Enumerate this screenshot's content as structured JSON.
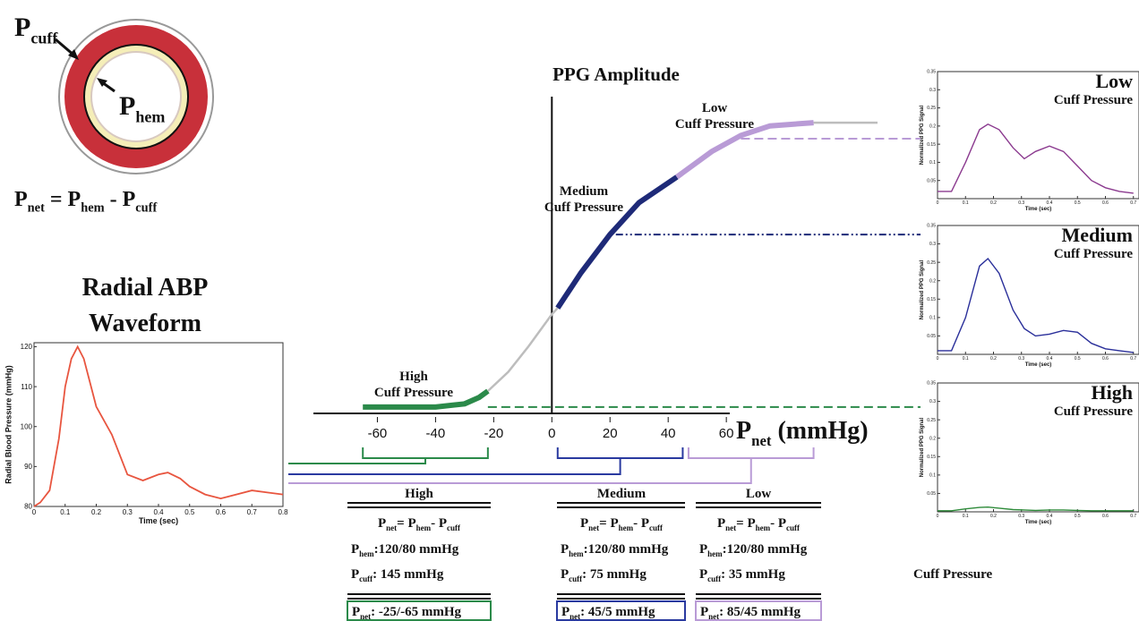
{
  "chart_data": [
    {
      "type": "line",
      "title": [
        "Radial ABP",
        "Waveform"
      ],
      "x_label": "Time (sec)",
      "y_label": "Radial Blood Pressure (mmHg)",
      "x": [
        0,
        0.02,
        0.05,
        0.08,
        0.1,
        0.12,
        0.14,
        0.16,
        0.2,
        0.25,
        0.3,
        0.35,
        0.4,
        0.43,
        0.47,
        0.5,
        0.55,
        0.6,
        0.65,
        0.7,
        0.75,
        0.8
      ],
      "values": [
        80,
        81,
        84,
        97,
        110,
        117,
        120,
        117,
        105,
        98,
        88,
        86.5,
        88,
        88.5,
        87,
        85,
        83,
        82,
        83,
        84,
        83.5,
        83
      ],
      "color": "#e8553f",
      "xlim": [
        0,
        0.8
      ],
      "ylim": [
        80,
        121
      ],
      "xticks": [
        0,
        0.1,
        0.2,
        0.3,
        0.4,
        0.5,
        0.6,
        0.7,
        0.8
      ],
      "yticks": [
        80,
        90,
        100,
        110,
        120
      ]
    },
    {
      "type": "line",
      "title": "PPG Amplitude",
      "x_label": [
        {
          "base": "P",
          "sub": "net"
        },
        " (mmHg)"
      ],
      "xlim": [
        -82,
        120
      ],
      "ylim": [
        0,
        1
      ],
      "xticks": [
        -60,
        -40,
        -20,
        0,
        20,
        40,
        60
      ],
      "annotations": [
        [
          "High",
          "Cuff Pressure"
        ],
        [
          "Medium",
          "Cuff Pressure"
        ],
        [
          "Low",
          "Cuff Pressure"
        ]
      ],
      "series": [
        {
          "color": "#2b8a4a",
          "x": [
            -65,
            -50,
            -40,
            -30,
            -25,
            -22
          ],
          "values": [
            0.02,
            0.02,
            0.02,
            0.03,
            0.05,
            0.07
          ]
        },
        {
          "color": "#bdbdbd",
          "x": [
            -22,
            -15,
            -8,
            0,
            2
          ],
          "values": [
            0.07,
            0.13,
            0.21,
            0.31,
            0.33
          ]
        },
        {
          "color": "#1e2a78",
          "x": [
            2,
            10,
            20,
            30,
            43
          ],
          "values": [
            0.33,
            0.44,
            0.56,
            0.66,
            0.74
          ]
        },
        {
          "color": "#b99bd6",
          "x": [
            43,
            55,
            65,
            75,
            90
          ],
          "values": [
            0.74,
            0.82,
            0.87,
            0.9,
            0.91
          ]
        },
        {
          "color": "#bdbdbd",
          "x": [
            90,
            112
          ],
          "values": [
            0.91,
            0.91
          ]
        }
      ],
      "reference_lines": [
        {
          "from": -22,
          "y": 0.02,
          "color": "#2b8a4a"
        },
        {
          "from": 22,
          "y": 0.56,
          "color": "#1e2a78"
        },
        {
          "from": 65,
          "y": 0.86,
          "color": "#b99bd6"
        }
      ],
      "brackets": [
        {
          "from": -65,
          "to": -22,
          "color": "#2b8a4a"
        },
        {
          "from": 2,
          "to": 45,
          "color": "#2a3aa0"
        },
        {
          "from": 47,
          "to": 90,
          "color": "#b99bd6"
        }
      ]
    },
    {
      "type": "line",
      "label": [
        "Low",
        "Cuff Pressure"
      ],
      "x_label": "Time (sec)",
      "y_label": "Normalized PPG Signal",
      "x": [
        0,
        0.05,
        0.1,
        0.15,
        0.18,
        0.22,
        0.27,
        0.31,
        0.35,
        0.4,
        0.45,
        0.5,
        0.55,
        0.6,
        0.65,
        0.7
      ],
      "values": [
        0.02,
        0.02,
        0.1,
        0.19,
        0.205,
        0.19,
        0.14,
        0.11,
        0.13,
        0.145,
        0.13,
        0.09,
        0.05,
        0.03,
        0.02,
        0.015
      ],
      "color": "#8b3a8f",
      "xlim": [
        0,
        0.72
      ],
      "ylim": [
        0,
        0.35
      ],
      "xticks": [
        0,
        0.1,
        0.2,
        0.3,
        0.4,
        0.5,
        0.6,
        0.7
      ],
      "yticks": [
        0.05,
        0.1,
        0.15,
        0.2,
        0.25,
        0.3,
        0.35
      ]
    },
    {
      "type": "line",
      "label": [
        "Medium",
        "Cuff Pressure"
      ],
      "x_label": "Time (sec)",
      "y_label": "Normalized PPG Signal",
      "x": [
        0,
        0.05,
        0.1,
        0.15,
        0.18,
        0.22,
        0.27,
        0.31,
        0.35,
        0.4,
        0.45,
        0.5,
        0.55,
        0.6,
        0.65,
        0.7
      ],
      "values": [
        0.01,
        0.01,
        0.1,
        0.24,
        0.26,
        0.22,
        0.12,
        0.07,
        0.05,
        0.055,
        0.065,
        0.06,
        0.03,
        0.015,
        0.01,
        0.005
      ],
      "color": "#2a2f9a",
      "xlim": [
        0,
        0.72
      ],
      "ylim": [
        0,
        0.35
      ],
      "xticks": [
        0,
        0.1,
        0.2,
        0.3,
        0.4,
        0.5,
        0.6,
        0.7
      ],
      "yticks": [
        0.05,
        0.1,
        0.15,
        0.2,
        0.25,
        0.3,
        0.35
      ]
    },
    {
      "type": "line",
      "label": [
        "High",
        "Cuff Pressure"
      ],
      "x_label": "Time (sec)",
      "y_label": "Normalized PPG Signal",
      "x": [
        0,
        0.05,
        0.1,
        0.15,
        0.18,
        0.22,
        0.27,
        0.31,
        0.35,
        0.4,
        0.45,
        0.5,
        0.55,
        0.6,
        0.65,
        0.7
      ],
      "values": [
        0.003,
        0.003,
        0.008,
        0.012,
        0.013,
        0.01,
        0.006,
        0.005,
        0.004,
        0.005,
        0.005,
        0.004,
        0.003,
        0.003,
        0.003,
        0.003
      ],
      "color": "#2e8b3a",
      "xlim": [
        0,
        0.72
      ],
      "ylim": [
        0,
        0.35
      ],
      "xticks": [
        0,
        0.1,
        0.2,
        0.3,
        0.4,
        0.5,
        0.6,
        0.7
      ],
      "yticks": [
        0.05,
        0.1,
        0.15,
        0.2,
        0.25,
        0.3,
        0.35
      ]
    }
  ],
  "vessel": {
    "p_cuff": {
      "base": "P",
      "sub": "cuff"
    },
    "p_hem": {
      "base": "P",
      "sub": "hem"
    },
    "formula": [
      {
        "base": "P",
        "sub": "net"
      },
      " = ",
      {
        "base": "P",
        "sub": "hem"
      },
      " - ",
      {
        "base": "P",
        "sub": "cuff"
      }
    ]
  },
  "table": {
    "columns": [
      {
        "title": "High",
        "color": "#2b8a4a",
        "formula": [
          {
            "base": "P",
            "sub": "net"
          },
          "= ",
          {
            "base": "P",
            "sub": "hem"
          },
          "- ",
          {
            "base": "P",
            "sub": "cuff"
          }
        ],
        "p_hem": [
          {
            "base": "P",
            "sub": "hem"
          },
          ":120/80 mmHg"
        ],
        "p_cuff": [
          {
            "base": "P",
            "sub": "cuff"
          },
          ": 145 mmHg"
        ],
        "p_net": [
          {
            "base": "P",
            "sub": "net"
          },
          ": -25/-65 mmHg"
        ]
      },
      {
        "title": "Medium",
        "color": "#2a3aa0",
        "formula": [
          {
            "base": "P",
            "sub": "net"
          },
          "= ",
          {
            "base": "P",
            "sub": "hem"
          },
          "- ",
          {
            "base": "P",
            "sub": "cuff"
          }
        ],
        "p_hem": [
          {
            "base": "P",
            "sub": "hem"
          },
          ":120/80 mmHg"
        ],
        "p_cuff": [
          {
            "base": "P",
            "sub": "cuff"
          },
          ": 75 mmHg"
        ],
        "p_net": [
          {
            "base": "P",
            "sub": "net"
          },
          ": 45/5 mmHg"
        ]
      },
      {
        "title": "Low",
        "color": "#b99bd6",
        "formula": [
          {
            "base": "P",
            "sub": "net"
          },
          "= ",
          {
            "base": "P",
            "sub": "hem"
          },
          "- ",
          {
            "base": "P",
            "sub": "cuff"
          }
        ],
        "p_hem": [
          {
            "base": "P",
            "sub": "hem"
          },
          ":120/80 mmHg"
        ],
        "p_cuff": [
          {
            "base": "P",
            "sub": "cuff"
          },
          ": 35 mmHg"
        ],
        "p_net": [
          {
            "base": "P",
            "sub": "net"
          },
          ": 85/45 mmHg"
        ]
      }
    ]
  },
  "footer": "Cuff Pressure"
}
